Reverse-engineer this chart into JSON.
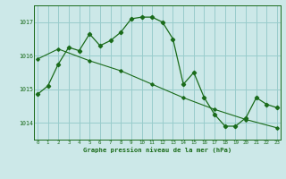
{
  "title": "Graphe pression niveau de la mer (hPa)",
  "bg_color": "#cce8e8",
  "grid_color": "#99cccc",
  "line_color": "#1a6b1a",
  "x_min": 0,
  "x_max": 23,
  "y_min": 1013.5,
  "y_max": 1017.5,
  "y_ticks": [
    1014,
    1015,
    1016,
    1017
  ],
  "x_ticks": [
    0,
    1,
    2,
    3,
    4,
    5,
    6,
    7,
    8,
    9,
    10,
    11,
    12,
    13,
    14,
    15,
    16,
    17,
    18,
    19,
    20,
    21,
    22,
    23
  ],
  "series1_x": [
    0,
    1,
    2,
    3,
    4,
    5,
    6,
    7,
    8,
    9,
    10,
    11,
    12,
    13,
    14,
    15,
    16,
    17,
    18,
    19,
    20,
    21,
    22,
    23
  ],
  "series1_y": [
    1014.85,
    1015.1,
    1015.75,
    1016.25,
    1016.15,
    1016.65,
    1016.3,
    1016.45,
    1016.7,
    1017.1,
    1017.15,
    1017.15,
    1017.0,
    1016.5,
    1015.15,
    1015.5,
    1014.75,
    1014.25,
    1013.9,
    1013.9,
    1014.15,
    1014.75,
    1014.55,
    1014.45
  ],
  "series2_x": [
    0,
    2,
    5,
    8,
    11,
    14,
    17,
    20,
    23
  ],
  "series2_y": [
    1015.9,
    1016.2,
    1015.85,
    1015.55,
    1015.15,
    1014.75,
    1014.4,
    1014.1,
    1013.85
  ]
}
